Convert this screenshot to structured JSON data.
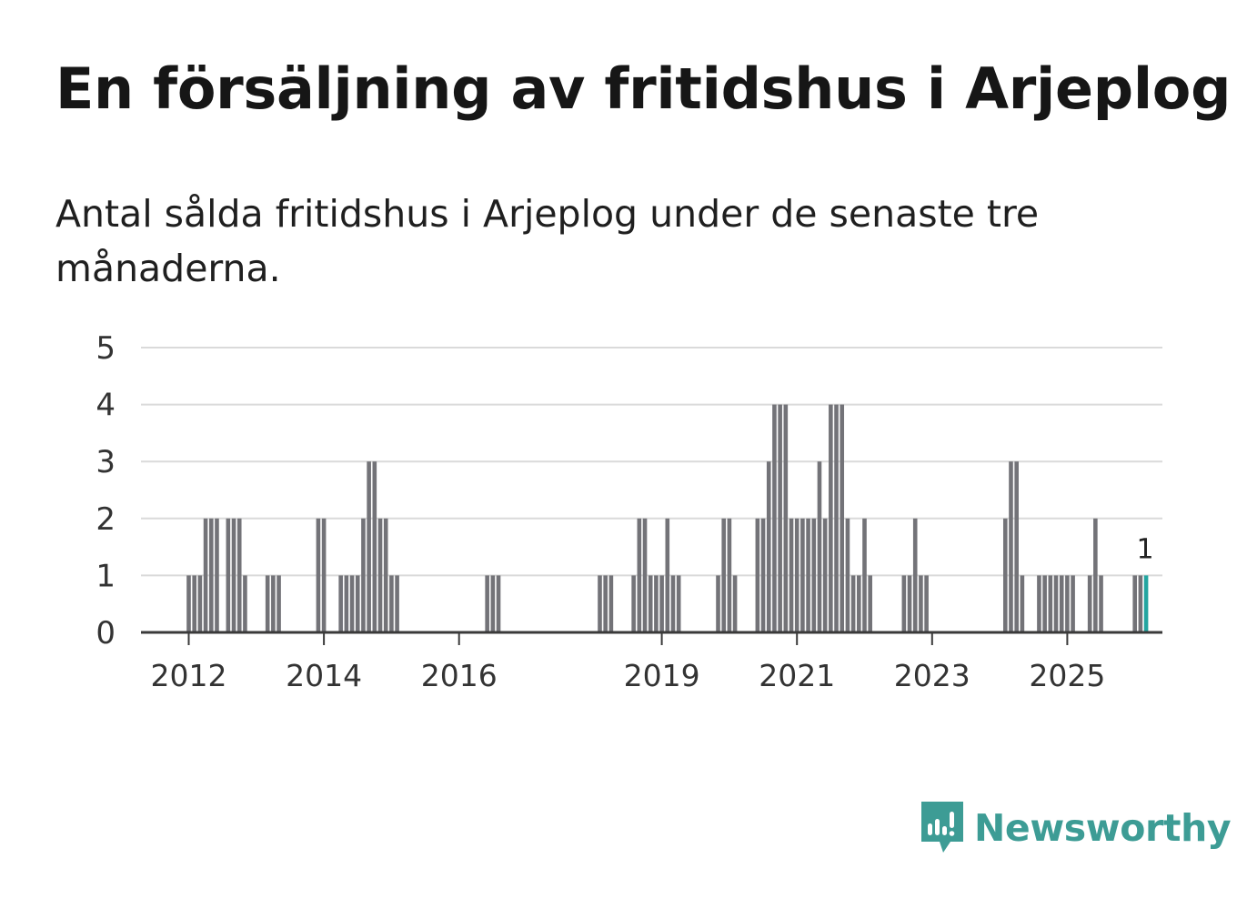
{
  "title": "En försäljning av fritidshus i Arjeplog",
  "subtitle": "Antal sålda fritidshus i Arjeplog under de senaste tre månaderna.",
  "brand": {
    "name": "Newsworthy",
    "icon": "newsworthy-logo-icon",
    "color": "#3d9c95"
  },
  "colors": {
    "bar": "#737378",
    "highlight": "#23a5a0",
    "grid": "#dadada",
    "axis": "#3a3a3a"
  },
  "chart_data": {
    "type": "bar",
    "title": "En försäljning av fritidshus i Arjeplog",
    "xlabel": "",
    "ylabel": "",
    "ylim": [
      0,
      5
    ],
    "yticks": [
      0,
      1,
      2,
      3,
      4,
      5
    ],
    "x_start": "2011-01",
    "x_end": "2026-06",
    "xticks": [
      {
        "label": "2012",
        "month": "2012-01"
      },
      {
        "label": "2014",
        "month": "2014-01"
      },
      {
        "label": "2016",
        "month": "2016-01"
      },
      {
        "label": "2019",
        "month": "2019-01"
      },
      {
        "label": "2021",
        "month": "2021-01"
      },
      {
        "label": "2023",
        "month": "2023-01"
      },
      {
        "label": "2025",
        "month": "2025-01"
      }
    ],
    "series": [
      {
        "name": "Antal sålda fritidshus",
        "values": [
          [
            "2012-01",
            1
          ],
          [
            "2012-02",
            1
          ],
          [
            "2012-03",
            1
          ],
          [
            "2012-04",
            2
          ],
          [
            "2012-05",
            2
          ],
          [
            "2012-06",
            2
          ],
          [
            "2012-08",
            2
          ],
          [
            "2012-09",
            2
          ],
          [
            "2012-10",
            2
          ],
          [
            "2012-11",
            1
          ],
          [
            "2013-03",
            1
          ],
          [
            "2013-04",
            1
          ],
          [
            "2013-05",
            1
          ],
          [
            "2013-12",
            2
          ],
          [
            "2014-01",
            2
          ],
          [
            "2014-04",
            1
          ],
          [
            "2014-05",
            1
          ],
          [
            "2014-06",
            1
          ],
          [
            "2014-07",
            1
          ],
          [
            "2014-08",
            2
          ],
          [
            "2014-09",
            3
          ],
          [
            "2014-10",
            3
          ],
          [
            "2014-11",
            2
          ],
          [
            "2014-12",
            2
          ],
          [
            "2015-01",
            1
          ],
          [
            "2015-02",
            1
          ],
          [
            "2016-06",
            1
          ],
          [
            "2016-07",
            1
          ],
          [
            "2016-08",
            1
          ],
          [
            "2018-02",
            1
          ],
          [
            "2018-03",
            1
          ],
          [
            "2018-04",
            1
          ],
          [
            "2018-08",
            1
          ],
          [
            "2018-09",
            2
          ],
          [
            "2018-10",
            2
          ],
          [
            "2018-11",
            1
          ],
          [
            "2018-12",
            1
          ],
          [
            "2019-01",
            1
          ],
          [
            "2019-02",
            2
          ],
          [
            "2019-03",
            1
          ],
          [
            "2019-04",
            1
          ],
          [
            "2019-11",
            1
          ],
          [
            "2019-12",
            2
          ],
          [
            "2020-01",
            2
          ],
          [
            "2020-02",
            1
          ],
          [
            "2020-06",
            2
          ],
          [
            "2020-07",
            2
          ],
          [
            "2020-08",
            3
          ],
          [
            "2020-09",
            4
          ],
          [
            "2020-10",
            4
          ],
          [
            "2020-11",
            4
          ],
          [
            "2020-12",
            2
          ],
          [
            "2021-01",
            2
          ],
          [
            "2021-02",
            2
          ],
          [
            "2021-03",
            2
          ],
          [
            "2021-04",
            2
          ],
          [
            "2021-05",
            3
          ],
          [
            "2021-06",
            2
          ],
          [
            "2021-07",
            4
          ],
          [
            "2021-08",
            4
          ],
          [
            "2021-09",
            4
          ],
          [
            "2021-10",
            2
          ],
          [
            "2021-11",
            1
          ],
          [
            "2021-12",
            1
          ],
          [
            "2022-01",
            2
          ],
          [
            "2022-02",
            1
          ],
          [
            "2022-08",
            1
          ],
          [
            "2022-09",
            1
          ],
          [
            "2022-10",
            2
          ],
          [
            "2022-11",
            1
          ],
          [
            "2022-12",
            1
          ],
          [
            "2024-02",
            2
          ],
          [
            "2024-03",
            3
          ],
          [
            "2024-04",
            3
          ],
          [
            "2024-05",
            1
          ],
          [
            "2024-08",
            1
          ],
          [
            "2024-09",
            1
          ],
          [
            "2024-10",
            1
          ],
          [
            "2024-11",
            1
          ],
          [
            "2024-12",
            1
          ],
          [
            "2025-01",
            1
          ],
          [
            "2025-02",
            1
          ],
          [
            "2025-05",
            1
          ],
          [
            "2025-06",
            2
          ],
          [
            "2025-07",
            1
          ],
          [
            "2026-01",
            1
          ],
          [
            "2026-02",
            1
          ],
          [
            "2026-03",
            1
          ]
        ]
      }
    ],
    "highlight": {
      "month": "2026-03",
      "value": 1,
      "label": "1"
    }
  }
}
